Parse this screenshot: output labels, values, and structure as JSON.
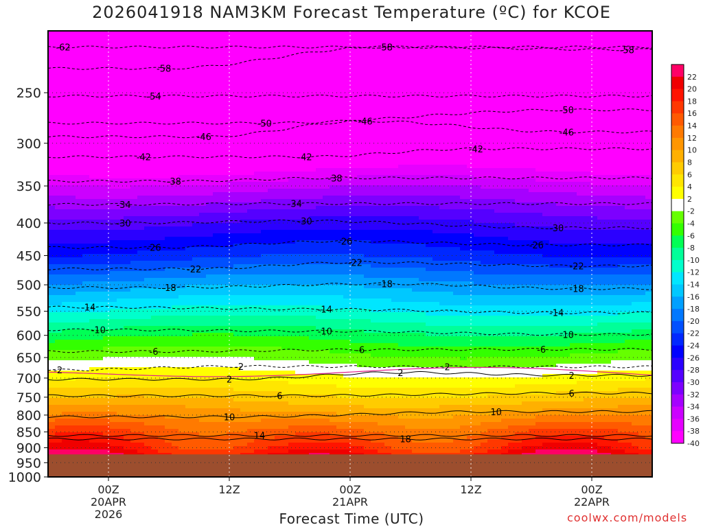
{
  "title": "2026041918 NAM3KM Forecast Temperature (ºC) for KCOE",
  "xlabel": "Forecast Time (UTC)",
  "credit": "coolwx.com/models",
  "colors": {
    "ground": "#9c4e2e",
    "zero_line": "#e0208a",
    "warm_contour": "#000000",
    "cold_contour": "#000000",
    "palette": [
      "#ff00ff",
      "#e600ff",
      "#cc00ff",
      "#a600ff",
      "#7d00ff",
      "#5500ff",
      "#2b00ff",
      "#0000ff",
      "#0028ff",
      "#0050ff",
      "#0078ff",
      "#00a0ff",
      "#00c8ff",
      "#00e6ff",
      "#00ffcc",
      "#00ff99",
      "#00ff55",
      "#33ff00",
      "#66ff00",
      "#ffffff",
      "#ffff00",
      "#ffe600",
      "#ffcc00",
      "#ffb000",
      "#ff9600",
      "#ff7a00",
      "#ff5a00",
      "#ff3800",
      "#ff1400",
      "#f00000",
      "#ff0066"
    ]
  },
  "chart_data": {
    "type": "heatmap",
    "title": "2026041918 NAM3KM Forecast Temperature (ºC) for KCOE",
    "xlabel": "Forecast Time (UTC)",
    "ylabel": "",
    "y_scale": "log-pressure",
    "ylim_hPa": [
      1000,
      200
    ],
    "x_range_hours_from_20APR00Z": [
      -6,
      54
    ],
    "grid": true,
    "pressure_ticks": [
      "250",
      "300",
      "350",
      "400",
      "450",
      "500",
      "550",
      "600",
      "650",
      "700",
      "750",
      "800",
      "850",
      "900",
      "950",
      "1000"
    ],
    "time_ticks": [
      {
        "hour": 0,
        "lines": [
          "00Z",
          "20APR",
          "2026"
        ]
      },
      {
        "hour": 12,
        "lines": [
          "12Z"
        ]
      },
      {
        "hour": 24,
        "lines": [
          "00Z",
          "21APR"
        ]
      },
      {
        "hour": 36,
        "lines": [
          "12Z"
        ]
      },
      {
        "hour": 48,
        "lines": [
          "00Z",
          "22APR"
        ]
      }
    ],
    "surface_pressure_hPa": 922,
    "colorbar": {
      "min": -40,
      "max": 22,
      "step": 2,
      "labels": [
        "22",
        "20",
        "18",
        "16",
        "14",
        "12",
        "10",
        "8",
        "6",
        "4",
        "2",
        "-2",
        "-4",
        "-6",
        "-8",
        "-10",
        "-12",
        "-14",
        "-16",
        "-18",
        "-20",
        "-22",
        "-24",
        "-26",
        "-28",
        "-30",
        "-32",
        "-34",
        "-36",
        "-38",
        "-40"
      ]
    },
    "temperature_profile": {
      "pressure_hPa": [
        200,
        250,
        300,
        350,
        400,
        450,
        500,
        550,
        600,
        650,
        700,
        750,
        800,
        850,
        900,
        922
      ],
      "temperature_C": [
        -62,
        -54,
        -44,
        -35,
        -28,
        -23,
        -17,
        -12,
        -7,
        -3,
        1,
        5,
        9,
        13,
        16,
        18
      ]
    },
    "series": [
      {
        "name": "-62",
        "values": [
          {
            "t": -4.5,
            "p": 212
          }
        ]
      },
      {
        "name": "-58",
        "values": [
          {
            "t": 5.5,
            "p": 229
          },
          {
            "t": 27.5,
            "p": 212
          },
          {
            "t": 51.5,
            "p": 214
          }
        ]
      },
      {
        "name": "-54",
        "values": [
          {
            "t": 4.5,
            "p": 253
          }
        ]
      },
      {
        "name": "-50",
        "values": [
          {
            "t": 15.5,
            "p": 279
          },
          {
            "t": 45.5,
            "p": 266
          }
        ]
      },
      {
        "name": "-46",
        "values": [
          {
            "t": 9.5,
            "p": 293
          },
          {
            "t": 25.5,
            "p": 277
          },
          {
            "t": 45.5,
            "p": 288
          }
        ]
      },
      {
        "name": "-42",
        "values": [
          {
            "t": 3.5,
            "p": 315
          },
          {
            "t": 19.5,
            "p": 315
          },
          {
            "t": 36.5,
            "p": 306
          }
        ]
      },
      {
        "name": "-38",
        "values": [
          {
            "t": 6.5,
            "p": 344
          },
          {
            "t": 22.5,
            "p": 340
          }
        ]
      },
      {
        "name": "-34",
        "values": [
          {
            "t": 1.5,
            "p": 374
          },
          {
            "t": 18.5,
            "p": 373
          }
        ]
      },
      {
        "name": "-30",
        "values": [
          {
            "t": 1.5,
            "p": 400
          },
          {
            "t": 19.5,
            "p": 397
          },
          {
            "t": 44.5,
            "p": 407
          }
        ]
      },
      {
        "name": "-26",
        "values": [
          {
            "t": 4.5,
            "p": 437
          },
          {
            "t": 23.5,
            "p": 427
          },
          {
            "t": 42.5,
            "p": 433
          }
        ]
      },
      {
        "name": "-22",
        "values": [
          {
            "t": 8.5,
            "p": 472
          },
          {
            "t": 24.5,
            "p": 461
          },
          {
            "t": 46.5,
            "p": 467
          }
        ]
      },
      {
        "name": "-18",
        "values": [
          {
            "t": 6.0,
            "p": 505
          },
          {
            "t": 27.5,
            "p": 498
          },
          {
            "t": 46.5,
            "p": 507
          }
        ]
      },
      {
        "name": "-14",
        "values": [
          {
            "t": -2.0,
            "p": 542
          },
          {
            "t": 21.5,
            "p": 546
          },
          {
            "t": 44.5,
            "p": 553
          }
        ]
      },
      {
        "name": "-10",
        "values": [
          {
            "t": -1.0,
            "p": 588
          },
          {
            "t": 21.5,
            "p": 591
          },
          {
            "t": 45.5,
            "p": 598
          }
        ]
      },
      {
        "name": "-6",
        "values": [
          {
            "t": 4.5,
            "p": 636
          },
          {
            "t": 25.0,
            "p": 632
          },
          {
            "t": 43.0,
            "p": 631
          }
        ]
      },
      {
        "name": "-2",
        "values": [
          {
            "t": -5.0,
            "p": 680
          },
          {
            "t": 13.0,
            "p": 671
          },
          {
            "t": 33.5,
            "p": 672
          }
        ]
      },
      {
        "name": "2",
        "values": [
          {
            "t": 12.0,
            "p": 703
          },
          {
            "t": 29.0,
            "p": 686
          },
          {
            "t": 46.0,
            "p": 693
          }
        ]
      },
      {
        "name": "6",
        "values": [
          {
            "t": 17.0,
            "p": 746
          },
          {
            "t": 46.0,
            "p": 739
          }
        ]
      },
      {
        "name": "10",
        "values": [
          {
            "t": 12.0,
            "p": 805
          },
          {
            "t": 38.5,
            "p": 790
          }
        ]
      },
      {
        "name": "14",
        "values": [
          {
            "t": 15.0,
            "p": 861
          }
        ]
      },
      {
        "name": "18",
        "values": [
          {
            "t": 29.5,
            "p": 872
          }
        ]
      }
    ]
  }
}
